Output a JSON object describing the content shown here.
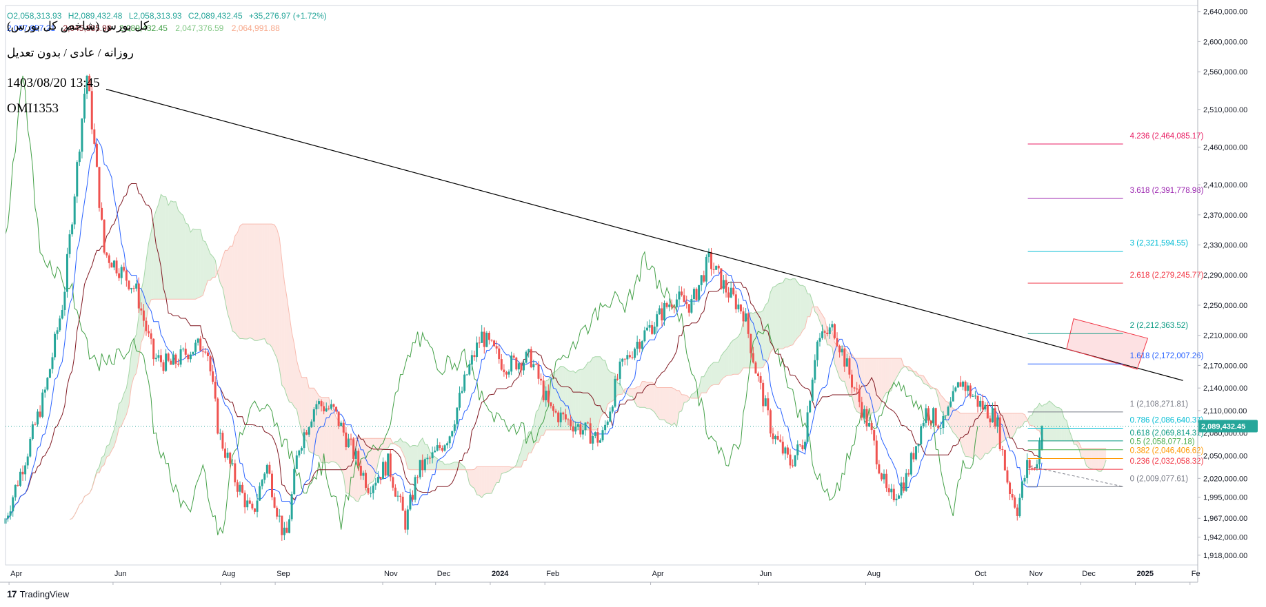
{
  "symbol_line": {
    "open": "O2,058,313.93",
    "high": "H2,089,432.48",
    "low": "L2,058,313.93",
    "close": "C2,089,432.45",
    "change": "+35,276.97 (+1.72%)"
  },
  "ichimoku_values": [
    {
      "label": "2,067,857.21",
      "color": "#2962ff"
    },
    {
      "label": "2,045,885.98",
      "color": "#801922"
    },
    {
      "label": "2,089,432.45",
      "color": "#43a047"
    },
    {
      "label": "2,047,376.59",
      "color": "#81c784"
    },
    {
      "label": "2,064,991.88",
      "color": "#f7a688"
    }
  ],
  "notes": {
    "title": "کل بورس (شاخص کل بورس)",
    "subtitle": "روزانه / عادی / بدون تعدیل",
    "datetime": "1403/08/20 13:45",
    "code": "OMI1353"
  },
  "brand": {
    "logo": "17",
    "name": "TradingView"
  },
  "last_price": {
    "label": "2,089,432.45",
    "value": 2089432.45,
    "color": "#26a69a"
  },
  "colors": {
    "up": "#26a69a",
    "down": "#ef5350",
    "tenkan": "#2962ff",
    "kijun": "#801922",
    "chikou": "#43a047",
    "cloud_bull": "#a5d6a7",
    "cloud_bear": "#f8bbb0",
    "trendline": "#000000"
  },
  "chart_data": {
    "type": "candlestick",
    "y_axis": {
      "min": 1905000,
      "max": 2648000,
      "ticks": [
        {
          "label": "2,640,000.00",
          "value": 2640000
        },
        {
          "label": "2,600,000.00",
          "value": 2600000
        },
        {
          "label": "2,560,000.00",
          "value": 2560000
        },
        {
          "label": "2,510,000.00",
          "value": 2510000
        },
        {
          "label": "2,460,000.00",
          "value": 2460000
        },
        {
          "label": "2,410,000.00",
          "value": 2410000
        },
        {
          "label": "2,370,000.00",
          "value": 2370000
        },
        {
          "label": "2,330,000.00",
          "value": 2330000
        },
        {
          "label": "2,290,000.00",
          "value": 2290000
        },
        {
          "label": "2,250,000.00",
          "value": 2250000
        },
        {
          "label": "2,210,000.00",
          "value": 2210000
        },
        {
          "label": "2,170,000.00",
          "value": 2170000
        },
        {
          "label": "2,140,000.00",
          "value": 2140000
        },
        {
          "label": "2,110,000.00",
          "value": 2110000
        },
        {
          "label": "2,080,000.00",
          "value": 2080000
        },
        {
          "label": "2,050,000.00",
          "value": 2050000
        },
        {
          "label": "2,020,000.00",
          "value": 2020000
        },
        {
          "label": "1,995,000.00",
          "value": 1995000
        },
        {
          "label": "1,967,000.00",
          "value": 1967000
        },
        {
          "label": "1,942,000.00",
          "value": 1942000
        },
        {
          "label": "1,918,000.00",
          "value": 1918000
        }
      ]
    },
    "x_axis": {
      "start": "2023-04-01",
      "end": "2025-02-05",
      "ticks": [
        {
          "label": "Apr",
          "date": "2023-04-03",
          "bold": false
        },
        {
          "label": "Jun",
          "date": "2023-06-01",
          "bold": false
        },
        {
          "label": "Aug",
          "date": "2023-08-01",
          "bold": false
        },
        {
          "label": "Sep",
          "date": "2023-09-01",
          "bold": false
        },
        {
          "label": "Nov",
          "date": "2023-11-01",
          "bold": false
        },
        {
          "label": "Dec",
          "date": "2023-12-01",
          "bold": false
        },
        {
          "label": "2024",
          "date": "2024-01-01",
          "bold": true
        },
        {
          "label": "Feb",
          "date": "2024-02-01",
          "bold": false
        },
        {
          "label": "Apr",
          "date": "2024-04-01",
          "bold": false
        },
        {
          "label": "Jun",
          "date": "2024-06-01",
          "bold": false
        },
        {
          "label": "Aug",
          "date": "2024-08-01",
          "bold": false
        },
        {
          "label": "Oct",
          "date": "2024-10-01",
          "bold": false
        },
        {
          "label": "Nov",
          "date": "2024-11-01",
          "bold": false
        },
        {
          "label": "Dec",
          "date": "2024-12-01",
          "bold": false
        },
        {
          "label": "2025",
          "date": "2025-01-01",
          "bold": true
        },
        {
          "label": "Fe",
          "date": "2025-02-01",
          "bold": false
        }
      ]
    },
    "price_path": [
      [
        "2023-04-01",
        1960000
      ],
      [
        "2023-04-15",
        2060000
      ],
      [
        "2023-04-25",
        2140000
      ],
      [
        "2023-05-05",
        2260000
      ],
      [
        "2023-05-12",
        2420000
      ],
      [
        "2023-05-18",
        2560000
      ],
      [
        "2023-05-22",
        2470000
      ],
      [
        "2023-05-28",
        2320000
      ],
      [
        "2023-06-05",
        2300000
      ],
      [
        "2023-06-15",
        2270000
      ],
      [
        "2023-06-25",
        2180000
      ],
      [
        "2023-07-05",
        2170000
      ],
      [
        "2023-07-15",
        2190000
      ],
      [
        "2023-07-25",
        2200000
      ],
      [
        "2023-08-01",
        2080000
      ],
      [
        "2023-08-10",
        2020000
      ],
      [
        "2023-08-20",
        1970000
      ],
      [
        "2023-08-28",
        2040000
      ],
      [
        "2023-09-05",
        1960000
      ],
      [
        "2023-09-08",
        1935000
      ],
      [
        "2023-09-15",
        2060000
      ],
      [
        "2023-09-25",
        2120000
      ],
      [
        "2023-10-05",
        2110000
      ],
      [
        "2023-10-15",
        2060000
      ],
      [
        "2023-10-25",
        2010000
      ],
      [
        "2023-11-05",
        2040000
      ],
      [
        "2023-11-15",
        1960000
      ],
      [
        "2023-11-22",
        2030000
      ],
      [
        "2023-12-01",
        2050000
      ],
      [
        "2023-12-10",
        2080000
      ],
      [
        "2023-12-20",
        2160000
      ],
      [
        "2023-12-28",
        2210000
      ],
      [
        "2024-01-10",
        2170000
      ],
      [
        "2024-01-25",
        2180000
      ],
      [
        "2024-02-05",
        2110000
      ],
      [
        "2024-02-20",
        2090000
      ],
      [
        "2024-03-05",
        2070000
      ],
      [
        "2024-03-15",
        2160000
      ],
      [
        "2024-03-25",
        2200000
      ],
      [
        "2024-04-05",
        2230000
      ],
      [
        "2024-04-15",
        2260000
      ],
      [
        "2024-04-25",
        2250000
      ],
      [
        "2024-05-05",
        2310000
      ],
      [
        "2024-05-15",
        2270000
      ],
      [
        "2024-05-25",
        2240000
      ],
      [
        "2024-06-01",
        2160000
      ],
      [
        "2024-06-10",
        2080000
      ],
      [
        "2024-06-20",
        2040000
      ],
      [
        "2024-06-28",
        2070000
      ],
      [
        "2024-07-05",
        2200000
      ],
      [
        "2024-07-15",
        2220000
      ],
      [
        "2024-07-25",
        2150000
      ],
      [
        "2024-08-05",
        2080000
      ],
      [
        "2024-08-15",
        1990000
      ],
      [
        "2024-08-25",
        2020000
      ],
      [
        "2024-09-05",
        2110000
      ],
      [
        "2024-09-15",
        2090000
      ],
      [
        "2024-09-25",
        2150000
      ],
      [
        "2024-10-05",
        2120000
      ],
      [
        "2024-10-15",
        2100000
      ],
      [
        "2024-10-22",
        2010000
      ],
      [
        "2024-10-27",
        1980000
      ],
      [
        "2024-11-02",
        2040000
      ],
      [
        "2024-11-06",
        2030000
      ],
      [
        "2024-11-10",
        2089432
      ]
    ],
    "trendline": [
      {
        "date": "2023-06-01",
        "value": 2535000
      },
      {
        "date": "2025-01-28",
        "value": 2150000
      }
    ],
    "fibonacci": [
      {
        "label": "4.236 (2,464,085.17)",
        "value": 2464085.17,
        "color": "#e91e63"
      },
      {
        "label": "3.618 (2,391,778.98)",
        "value": 2391778.98,
        "color": "#9c27b0"
      },
      {
        "label": "3 (2,321,594.55)",
        "value": 2321594.55,
        "color": "#00bcd4"
      },
      {
        "label": "2.618 (2,279,245.77)",
        "value": 2279245.77,
        "color": "#f23645"
      },
      {
        "label": "2 (2,212,363.52)",
        "value": 2212363.52,
        "color": "#089981"
      },
      {
        "label": "1.618 (2,172,007.26)",
        "value": 2172007.26,
        "color": "#2962ff"
      },
      {
        "label": "1 (2,108,271.81)",
        "value": 2108271.81,
        "color": "#787b86"
      },
      {
        "label": "0.786 (2,086,640.37)",
        "value": 2086640.37,
        "color": "#00bcd4"
      },
      {
        "label": "0.618 (2,069,814.31)",
        "value": 2069814.31,
        "color": "#089981"
      },
      {
        "label": "0.5 (2,058,077.18)",
        "value": 2058077.18,
        "color": "#4caf50"
      },
      {
        "label": "0.382 (2,046,406.62)",
        "value": 2046406.62,
        "color": "#ff9800"
      },
      {
        "label": "0.236 (2,032,058.32)",
        "value": 2032058.32,
        "color": "#f23645"
      },
      {
        "label": "0 (2,009,077.61)",
        "value": 2009077.61,
        "color": "#787b86"
      }
    ],
    "fib_range": {
      "start": "2024-11-01",
      "end": "2024-12-25"
    },
    "rectangle": {
      "corners": [
        {
          "date": "2024-11-27",
          "value": 2232000
        },
        {
          "date": "2025-01-08",
          "value": 2206000
        },
        {
          "date": "2025-01-02",
          "value": 2165000
        },
        {
          "date": "2024-11-23",
          "value": 2192000
        }
      ]
    }
  }
}
